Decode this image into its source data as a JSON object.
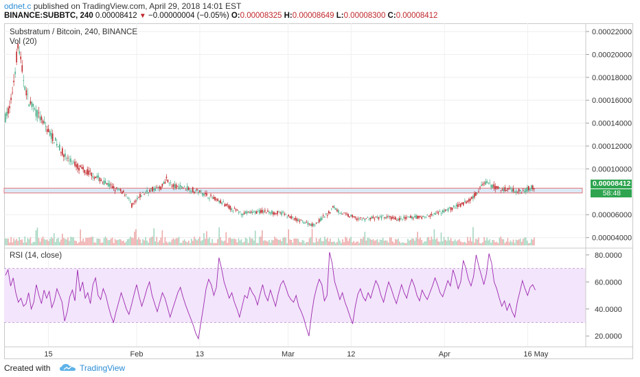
{
  "header": {
    "author": "odnet.c",
    "published_text": " published on TradingView.com, April 29, 2018 14:01 EST",
    "symbol": "BINANCE:SUBBTC, 240",
    "last": "0.00008412",
    "change": "−0.00000004 (−0.05%)",
    "o_label": "O:",
    "o_value": "0.00008325",
    "h_label": "H:",
    "h_value": "0.00008649",
    "l_label": "L:",
    "l_value": "0.00008300",
    "c_label": "C:",
    "c_value": "0.00008412"
  },
  "legend": {
    "main": "Substratum / Bitcoin, 240, BINANCE",
    "volume": "Vol (20)",
    "rsi": "RSI (14, close)"
  },
  "badges": {
    "price": "0.00008412",
    "time": "58:48"
  },
  "footer": {
    "created": "Created with",
    "brand": "TradingView"
  },
  "colors": {
    "up": "#4caf8a",
    "down": "#c0262a",
    "rsi_line": "#9c27b0",
    "rsi_band": "#f3e5fb",
    "zone_fill": "#dce9f7",
    "zone_border": "#e05a5a",
    "badge": "#2ea44f",
    "brand": "#2a8cd4"
  },
  "chart_data": [
    {
      "type": "candlestick",
      "title": "Substratum / Bitcoin, 240, BINANCE",
      "x_ticks": [
        "15",
        "Feb",
        "13",
        "Mar",
        "12",
        "Apr",
        "16",
        "May"
      ],
      "y_ticks": [
        "0.00022000",
        "0.00020000",
        "0.00018000",
        "0.00016000",
        "0.00014000",
        "0.00012000",
        "0.00010000",
        "0.00006000",
        "0.00004000"
      ],
      "ylim": [
        3.2e-05,
        0.000226
      ],
      "highlight_zone": [
        7.9e-05,
        8.32e-05
      ],
      "price_path": [
        [
          0,
          0.000145
        ],
        [
          2,
          0.000155
        ],
        [
          4,
          0.00019
        ],
        [
          5,
          0.00021
        ],
        [
          7,
          0.00018
        ],
        [
          9,
          0.00016
        ],
        [
          12,
          0.00015
        ],
        [
          15,
          0.00014
        ],
        [
          18,
          0.00013
        ],
        [
          21,
          0.00012
        ],
        [
          24,
          0.00011
        ],
        [
          27,
          0.000105
        ],
        [
          30,
          0.0001
        ],
        [
          33,
          9.7e-05
        ],
        [
          36,
          9.3e-05
        ],
        [
          40,
          8.7e-05
        ],
        [
          44,
          8.2e-05
        ],
        [
          48,
          7.8e-05
        ],
        [
          50,
          6.8e-05
        ],
        [
          52,
          7.2e-05
        ],
        [
          54,
          7.8e-05
        ],
        [
          58,
          8.2e-05
        ],
        [
          62,
          8.4e-05
        ],
        [
          64,
          9.2e-05
        ],
        [
          66,
          8.5e-05
        ],
        [
          70,
          8.4e-05
        ],
        [
          74,
          8.2e-05
        ],
        [
          78,
          7.9e-05
        ],
        [
          82,
          7.5e-05
        ],
        [
          86,
          7e-05
        ],
        [
          90,
          6.5e-05
        ],
        [
          94,
          6.1e-05
        ],
        [
          98,
          6.2e-05
        ],
        [
          102,
          6.3e-05
        ],
        [
          106,
          6.2e-05
        ],
        [
          110,
          6.1e-05
        ],
        [
          113,
          5.8e-05
        ],
        [
          116,
          5.5e-05
        ],
        [
          119,
          5.3e-05
        ],
        [
          122,
          5.1e-05
        ],
        [
          124,
          5.4e-05
        ],
        [
          126,
          5.8e-05
        ],
        [
          128,
          6.1e-05
        ],
        [
          130,
          6.7e-05
        ],
        [
          132,
          6.3e-05
        ],
        [
          135,
          6e-05
        ],
        [
          138,
          5.8e-05
        ],
        [
          141,
          5.6e-05
        ],
        [
          144,
          5.7e-05
        ],
        [
          147,
          5.7e-05
        ],
        [
          150,
          5.8e-05
        ],
        [
          153,
          5.7e-05
        ],
        [
          156,
          5.6e-05
        ],
        [
          159,
          5.7e-05
        ],
        [
          162,
          5.8e-05
        ],
        [
          165,
          5.8e-05
        ],
        [
          168,
          5.9e-05
        ],
        [
          171,
          6.1e-05
        ],
        [
          174,
          6.3e-05
        ],
        [
          177,
          6.6e-05
        ],
        [
          180,
          6.8e-05
        ],
        [
          183,
          7.2e-05
        ],
        [
          186,
          7.7e-05
        ],
        [
          188,
          8.3e-05
        ],
        [
          190,
          8.8e-05
        ],
        [
          192,
          8.6e-05
        ],
        [
          194,
          8.4e-05
        ],
        [
          197,
          8.2e-05
        ],
        [
          200,
          8.3e-05
        ],
        [
          203,
          8e-05
        ],
        [
          206,
          8.2e-05
        ],
        [
          210,
          8.41e-05
        ]
      ],
      "x_range": [
        0,
        230
      ]
    },
    {
      "type": "line",
      "title": "RSI (14, close)",
      "y_ticks": [
        "80.0000",
        "60.0000",
        "40.0000",
        "20.0000"
      ],
      "ylim": [
        13,
        84
      ],
      "band": [
        30,
        70
      ],
      "x_range": [
        0,
        230
      ],
      "values": [
        65,
        69,
        57,
        63,
        52,
        45,
        48,
        42,
        44,
        52,
        40,
        45,
        58,
        50,
        44,
        54,
        48,
        53,
        41,
        46,
        55,
        50,
        45,
        31,
        38,
        49,
        54,
        46,
        69,
        53,
        60,
        48,
        52,
        44,
        58,
        63,
        50,
        47,
        55,
        50,
        42,
        35,
        30,
        38,
        45,
        52,
        46,
        40,
        36,
        43,
        51,
        58,
        49,
        42,
        48,
        55,
        60,
        50,
        44,
        38,
        45,
        52,
        48,
        41,
        34,
        40,
        46,
        52,
        56,
        49,
        43,
        38,
        33,
        28,
        22,
        18,
        30,
        42,
        55,
        62,
        58,
        50,
        56,
        78,
        70,
        60,
        54,
        48,
        52,
        45,
        40,
        34,
        42,
        50,
        48,
        56,
        52,
        49,
        43,
        51,
        58,
        50,
        46,
        54,
        48,
        42,
        51,
        58,
        61,
        56,
        50,
        47,
        45,
        50,
        42,
        38,
        33,
        26,
        20,
        36,
        48,
        56,
        62,
        58,
        46,
        50,
        82,
        74,
        60,
        54,
        47,
        52,
        45,
        40,
        34,
        29,
        42,
        51,
        55,
        49,
        46,
        52,
        48,
        55,
        61,
        57,
        50,
        45,
        53,
        60,
        55,
        49,
        44,
        51,
        58,
        52,
        48,
        56,
        62,
        57,
        50,
        46,
        54,
        50,
        47,
        52,
        57,
        63,
        58,
        52,
        49,
        55,
        61,
        57,
        69,
        63,
        55,
        60,
        76,
        70,
        62,
        57,
        64,
        80,
        72,
        65,
        58,
        66,
        81,
        74,
        60,
        55,
        48,
        42,
        46,
        39,
        44,
        38,
        34,
        45,
        53,
        61,
        55,
        50,
        56,
        58,
        54
      ]
    }
  ]
}
